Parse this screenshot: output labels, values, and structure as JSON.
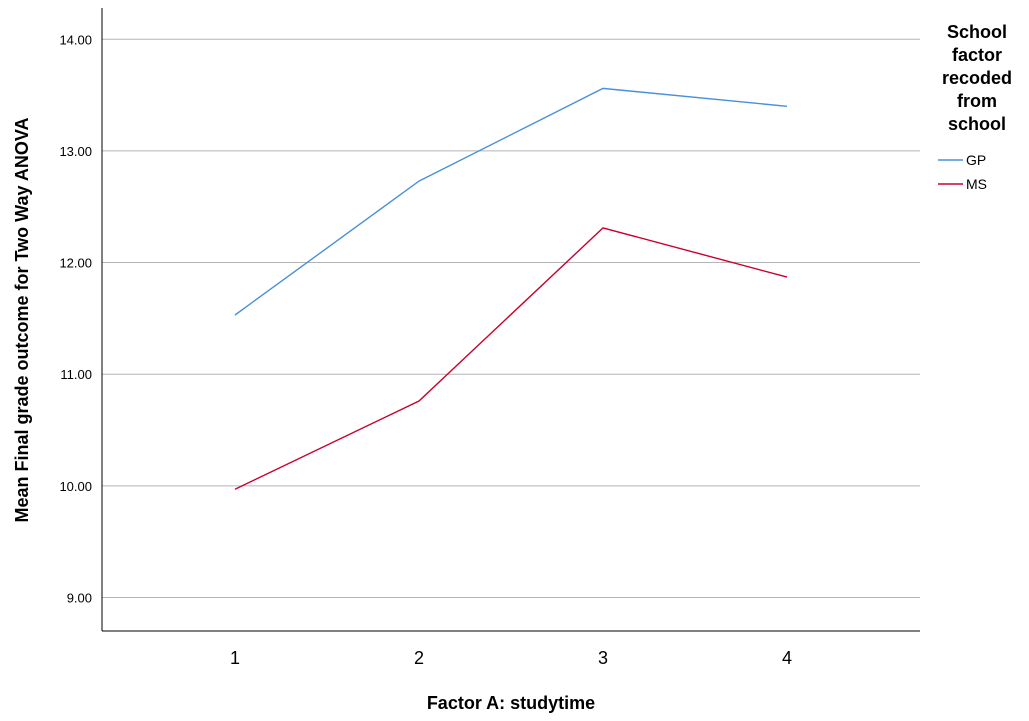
{
  "chart_data": {
    "type": "line",
    "title": "",
    "xlabel": "Factor A: studytime",
    "ylabel": "Mean Final grade outcome for Two Way ANOVA",
    "categories": [
      "1",
      "2",
      "3",
      "4"
    ],
    "yticks": [
      "9.00",
      "10.00",
      "11.00",
      "12.00",
      "13.00",
      "14.00"
    ],
    "ylim": [
      8.7,
      14.28
    ],
    "grid": true,
    "legend": {
      "title_lines": [
        "School",
        "factor",
        "recoded",
        "from",
        "school"
      ],
      "placement": "top-right"
    },
    "series": [
      {
        "name": "GP",
        "color": "#4a90d9",
        "values": [
          11.53,
          12.73,
          13.56,
          13.4
        ]
      },
      {
        "name": "MS",
        "color": "#c8002d",
        "values": [
          9.97,
          10.76,
          12.31,
          11.87
        ]
      }
    ]
  }
}
